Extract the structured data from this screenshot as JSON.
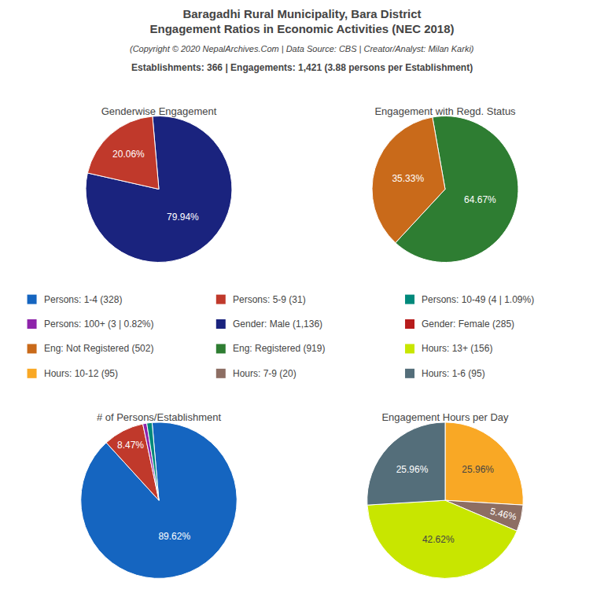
{
  "title": [
    "Baragadhi Rural Municipality, Bara District",
    "Engagement Ratios in Economic Activities (NEC 2018)"
  ],
  "subtitle": "(Copyright © 2020 NepalArchives.Com | Data Source: CBS | Creator/Analyst: Milan Karki)",
  "annotations": [
    "Establishments: 366 | Engagements: 1,421 (3.88 persons per Establishment)"
  ],
  "chart_data": [
    {
      "type": "pie",
      "title": "Genderwise Engagement",
      "values": [
        79.94,
        20.06
      ],
      "value_labels": [
        "79.94%",
        "20.06%"
      ],
      "colors": [
        "#1a237e",
        "#c0392b"
      ],
      "data_labels": true
    },
    {
      "type": "pie",
      "title": "Engagement with Regd. Status",
      "values": [
        64.67,
        35.33
      ],
      "value_labels": [
        "64.67%",
        "35.33%"
      ],
      "colors": [
        "#2e7d32",
        "#c96a1a"
      ],
      "data_labels": true
    },
    {
      "type": "pie",
      "title": "# of Persons/Establishment",
      "values": [
        89.62,
        8.47,
        0.82,
        1.09
      ],
      "value_labels": [
        "89.62%",
        "8.47%",
        null,
        null
      ],
      "colors": [
        "#1565c0",
        "#c0392b",
        "#8e24aa",
        "#00897b"
      ],
      "data_labels": true
    },
    {
      "type": "pie",
      "title": "Engagement Hours per Day",
      "values": [
        25.96,
        5.46,
        42.62,
        25.96
      ],
      "value_labels": [
        "25.96%",
        "5.46%",
        "42.62%",
        "25.96%"
      ],
      "colors": [
        "#f9a825",
        "#8d6e63",
        "#c8e600",
        "#546e7a"
      ],
      "data_labels": true
    },
    {
      "type": "legend",
      "series": [
        {
          "name": "Persons: 1-4 (328)",
          "color": "#1565c0"
        },
        {
          "name": "Persons: 5-9 (31)",
          "color": "#c0392b"
        },
        {
          "name": "Persons: 10-49 (4 | 1.09%)",
          "color": "#00897b"
        },
        {
          "name": "Persons: 100+ (3 | 0.82%)",
          "color": "#8e24aa"
        },
        {
          "name": "Gender: Male (1,136)",
          "color": "#1a237e"
        },
        {
          "name": "Gender: Female (285)",
          "color": "#b71c1c"
        },
        {
          "name": "Eng: Not Registered (502)",
          "color": "#c96a1a"
        },
        {
          "name": "Eng: Registered (919)",
          "color": "#2e7d32"
        },
        {
          "name": "Hours: 13+ (156)",
          "color": "#c8e600"
        },
        {
          "name": "Hours: 10-12 (95)",
          "color": "#f9a825"
        },
        {
          "name": "Hours: 7-9 (20)",
          "color": "#8d6e63"
        },
        {
          "name": "Hours: 1-6 (95)",
          "color": "#546e7a"
        }
      ]
    }
  ]
}
